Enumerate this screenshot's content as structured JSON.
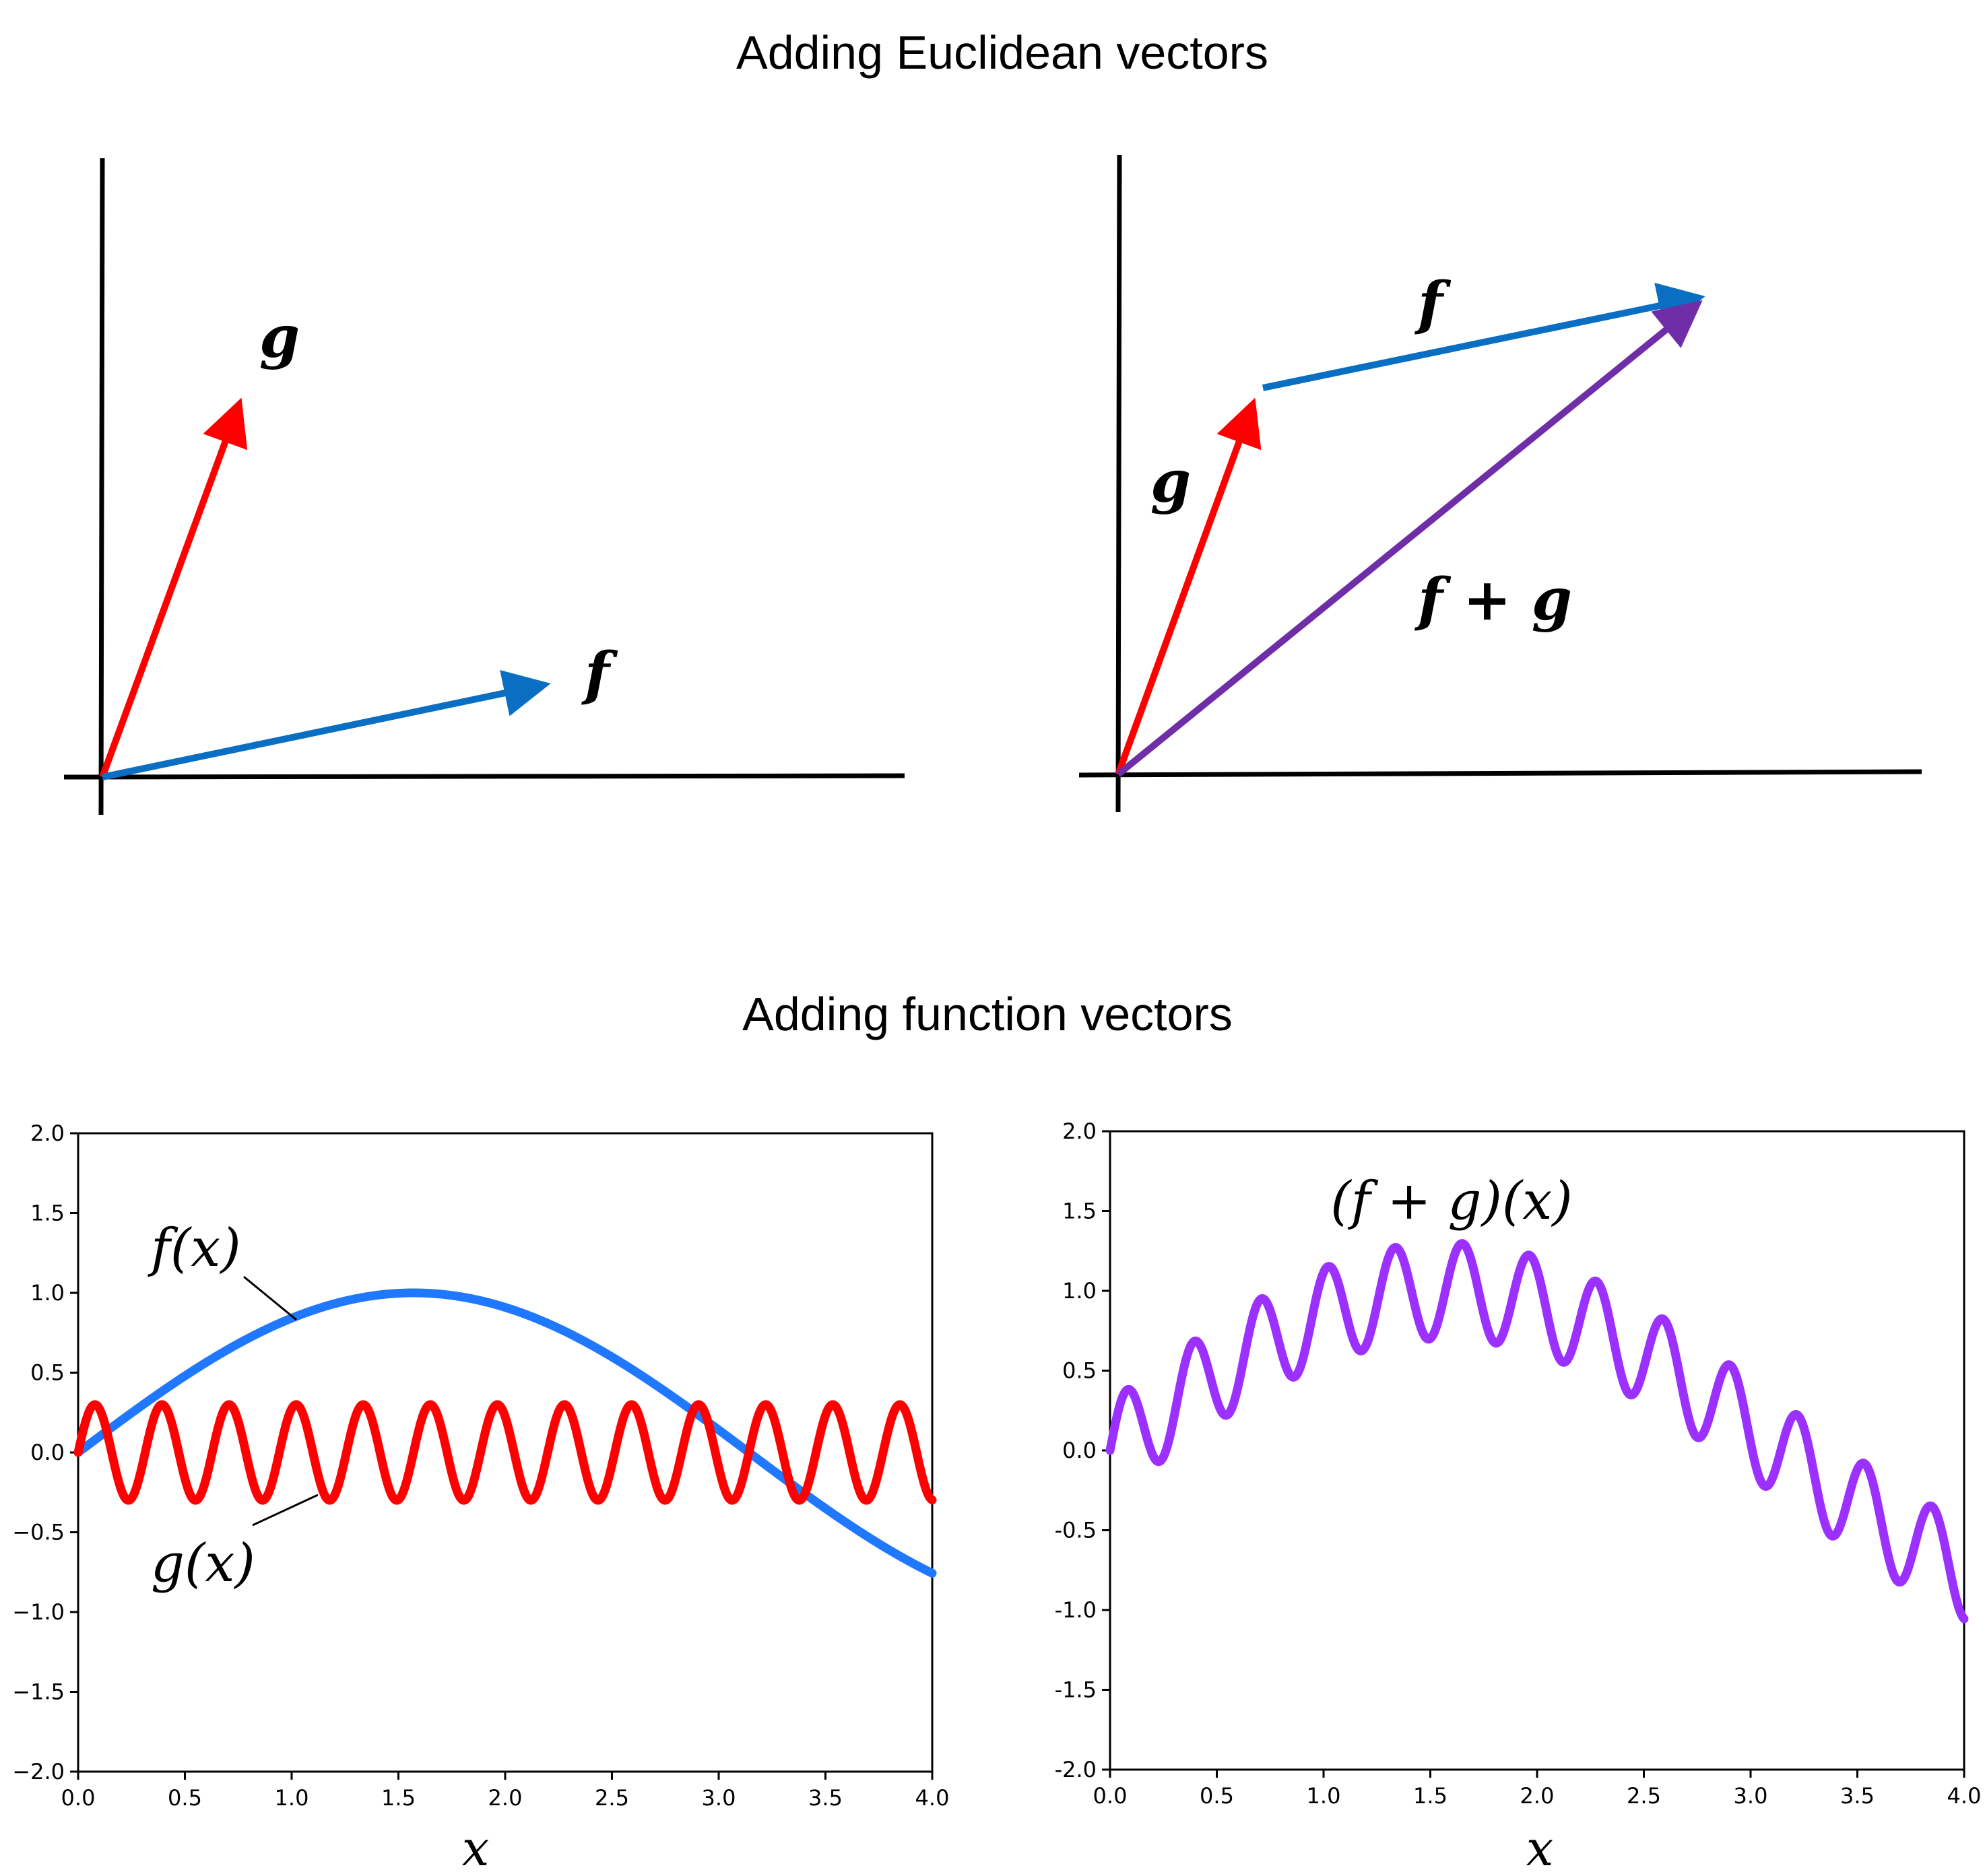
{
  "titles": {
    "euclidean": "Adding Euclidean vectors",
    "functions": "Adding function vectors"
  },
  "euclidean_left": {
    "g_label": "g",
    "f_label": "f"
  },
  "euclidean_right": {
    "g_label": "g",
    "f_label": "f",
    "sum_label": "f + g"
  },
  "colors": {
    "f": "#0a6fc2",
    "g": "#ff0000",
    "sum": "#6f2da8",
    "f_curve": "#1f78ff",
    "g_curve": "#ff0000",
    "sum_curve": "#9b30ff"
  },
  "chart_data": [
    {
      "type": "line",
      "title": "",
      "xlabel": "x",
      "ylabel": "",
      "xlim": [
        0.0,
        4.0
      ],
      "ylim": [
        -2.0,
        2.0
      ],
      "xticks": [
        "0.0",
        "0.5",
        "1.0",
        "1.5",
        "2.0",
        "2.5",
        "3.0",
        "3.5",
        "4.0"
      ],
      "yticks": [
        "2.0",
        "1.5",
        "1.0",
        "0.5",
        "0.0",
        "−0.5",
        "−1.0",
        "−1.5",
        "−2.0"
      ],
      "series": [
        {
          "name": "f(x)",
          "formula": "sin(x)",
          "amplitude": 1.0,
          "angular_frequency": 1.0
        },
        {
          "name": "g(x)",
          "formula": "0.3 sin(20x)",
          "amplitude": 0.3,
          "angular_frequency": 20.0
        }
      ]
    },
    {
      "type": "line",
      "title": "",
      "xlabel": "x",
      "ylabel": "",
      "xlim": [
        0.0,
        4.0
      ],
      "ylim": [
        -2.0,
        2.0
      ],
      "xticks": [
        "0.0",
        "0.5",
        "1.0",
        "1.5",
        "2.0",
        "2.5",
        "3.0",
        "3.5",
        "4.0"
      ],
      "yticks": [
        "2.0",
        "1.5",
        "1.0",
        "0.5",
        "0.0",
        "-0.5",
        "-1.0",
        "-1.5",
        "-2.0"
      ],
      "series": [
        {
          "name": "(f + g)(x)",
          "formula": "sin(x) + 0.3 sin(20x)",
          "amplitude_f": 1.0,
          "amplitude_g": 0.3,
          "angular_frequency_g": 20.0
        }
      ]
    }
  ]
}
